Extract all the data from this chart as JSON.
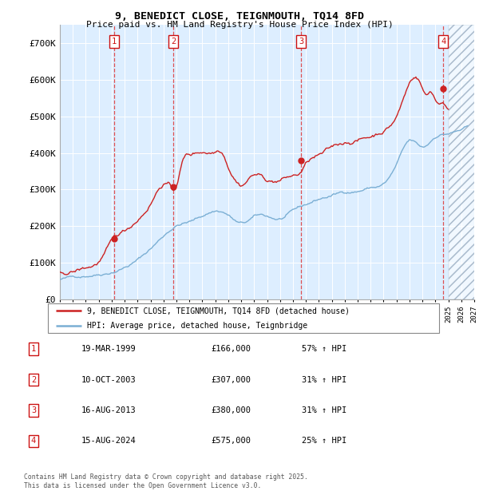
{
  "title": "9, BENEDICT CLOSE, TEIGNMOUTH, TQ14 8FD",
  "subtitle": "Price paid vs. HM Land Registry's House Price Index (HPI)",
  "ylim": [
    0,
    750000
  ],
  "yticks": [
    0,
    100000,
    200000,
    300000,
    400000,
    500000,
    600000,
    700000
  ],
  "ytick_labels": [
    "£0",
    "£100K",
    "£200K",
    "£300K",
    "£400K",
    "£500K",
    "£600K",
    "£700K"
  ],
  "xlim_start": 1995.0,
  "xlim_end": 2027.0,
  "hpi_color": "#7bafd4",
  "price_color": "#cc2222",
  "background_color": "#ffffff",
  "chart_bg_color": "#ddeeff",
  "grid_color": "#ffffff",
  "sale_dates": [
    1999.21,
    2003.77,
    2013.62,
    2024.62
  ],
  "sale_prices": [
    166000,
    307000,
    380000,
    575000
  ],
  "sale_labels": [
    "1",
    "2",
    "3",
    "4"
  ],
  "legend_price_label": "9, BENEDICT CLOSE, TEIGNMOUTH, TQ14 8FD (detached house)",
  "legend_hpi_label": "HPI: Average price, detached house, Teignbridge",
  "table_rows": [
    [
      "1",
      "19-MAR-1999",
      "£166,000",
      "57% ↑ HPI"
    ],
    [
      "2",
      "10-OCT-2003",
      "£307,000",
      "31% ↑ HPI"
    ],
    [
      "3",
      "16-AUG-2013",
      "£380,000",
      "31% ↑ HPI"
    ],
    [
      "4",
      "15-AUG-2024",
      "£575,000",
      "25% ↑ HPI"
    ]
  ],
  "footnote": "Contains HM Land Registry data © Crown copyright and database right 2025.\nThis data is licensed under the Open Government Licence v3.0.",
  "future_shade_start": 2025.0,
  "vline_dashes": [
    1999.21,
    2003.77,
    2013.62,
    2024.62
  ]
}
